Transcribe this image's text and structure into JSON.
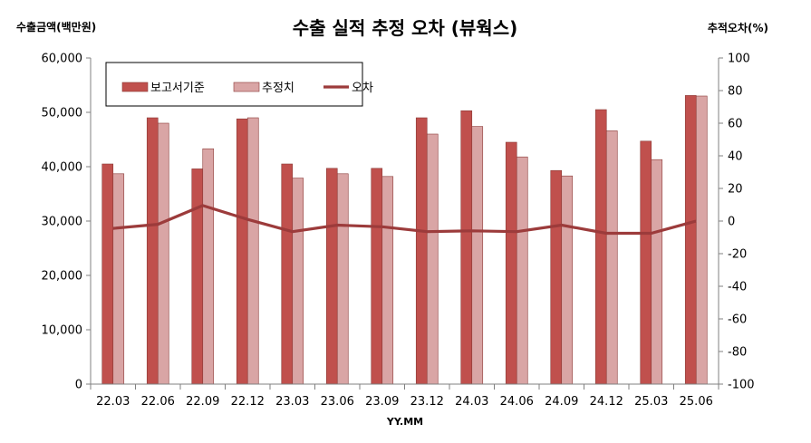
{
  "chart_data": {
    "type": "bar",
    "title": "수출 실적 추정 오차 (뷰웍스)",
    "ylabel": "수출금액(백만원)",
    "y2label": "추적오차(%)",
    "xlabel": "YY.MM",
    "ylim": [
      0,
      60000
    ],
    "y2lim": [
      -100,
      100
    ],
    "yticks": [
      0,
      10000,
      20000,
      30000,
      40000,
      50000,
      60000
    ],
    "ytick_labels": [
      "0",
      "10,000",
      "20,000",
      "30,000",
      "40,000",
      "50,000",
      "60,000"
    ],
    "y2ticks": [
      -100,
      -80,
      -60,
      -40,
      -20,
      0,
      20,
      40,
      60,
      80,
      100
    ],
    "y2tick_labels": [
      "-100",
      "-80",
      "-60",
      "-40",
      "-20",
      "0",
      "20",
      "40",
      "60",
      "80",
      "100"
    ],
    "categories": [
      "22.03",
      "22.06",
      "22.09",
      "22.12",
      "23.03",
      "23.06",
      "23.09",
      "23.12",
      "24.03",
      "24.06",
      "24.09",
      "24.12",
      "25.03",
      "25.06"
    ],
    "series": [
      {
        "name": "보고서기준",
        "kind": "bar",
        "axis": "left",
        "color": "#c0504d",
        "values": [
          40500,
          49000,
          39600,
          48800,
          40500,
          39700,
          39700,
          49000,
          50300,
          44500,
          39300,
          50500,
          44700,
          53100
        ]
      },
      {
        "name": "추정치",
        "kind": "bar",
        "axis": "left",
        "color": "#d9a5a5",
        "values": [
          38700,
          48000,
          43300,
          49000,
          37900,
          38700,
          38200,
          46000,
          47400,
          41800,
          38300,
          46600,
          41300,
          53000
        ]
      },
      {
        "name": "오차",
        "kind": "line",
        "axis": "right",
        "color": "#9c3b3b",
        "values": [
          -4.5,
          -2,
          9.5,
          1,
          -6.5,
          -2.5,
          -3.5,
          -6.5,
          -6,
          -6.5,
          -2.5,
          -7.5,
          -7.5,
          0
        ]
      }
    ],
    "legend": "top-left",
    "grid": false
  }
}
